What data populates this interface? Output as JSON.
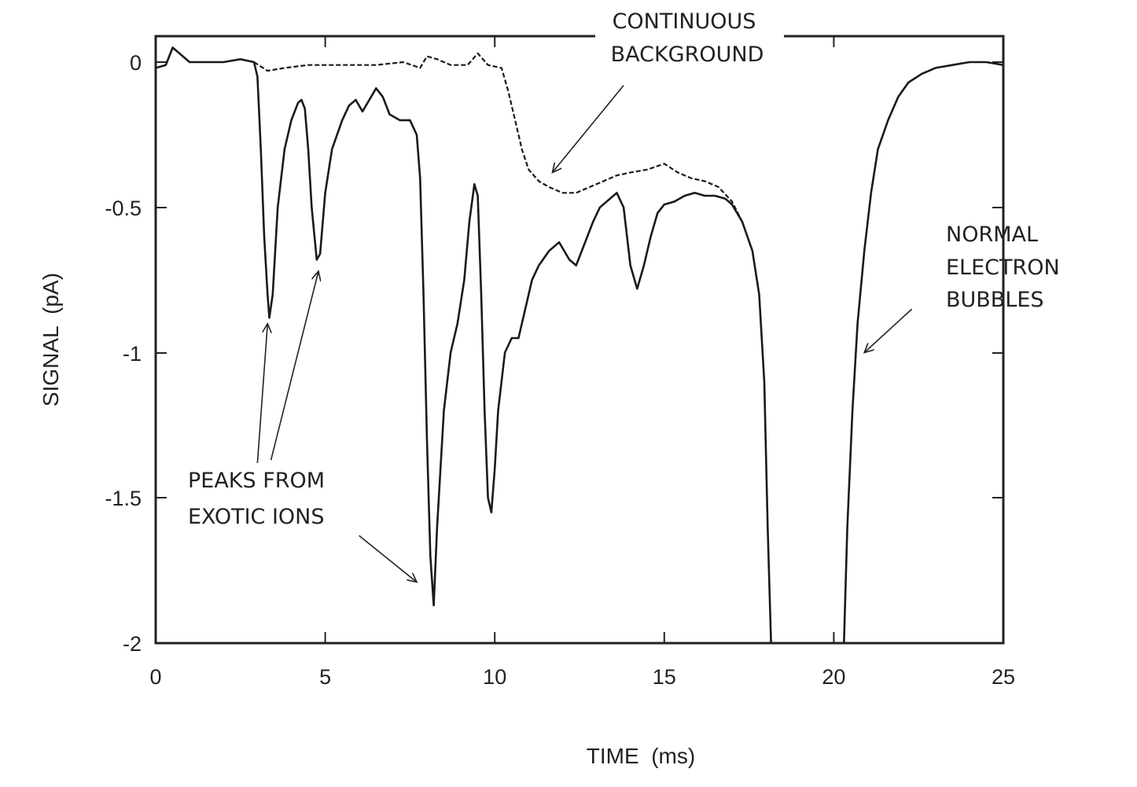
{
  "chart_data": {
    "type": "line",
    "title": "",
    "xlabel": "TIME  (ms)",
    "ylabel": "SIGNAL  (pA)",
    "xlim": [
      0,
      25
    ],
    "ylim": [
      -2,
      0.1
    ],
    "x_ticks": [
      0,
      5,
      10,
      15,
      20,
      25
    ],
    "x_tick_labels": [
      "0",
      "5",
      "10",
      "15",
      "20",
      "25"
    ],
    "y_ticks": [
      0,
      -0.5,
      -1,
      -1.5,
      -2
    ],
    "y_tick_labels": [
      "0",
      "-0.5",
      "-1",
      "-1.5",
      "-2"
    ],
    "grid": false,
    "legend": "none",
    "series": [
      {
        "style": "solid",
        "points": [
          [
            0,
            -0.02
          ],
          [
            0.3,
            -0.01
          ],
          [
            0.5,
            0.05
          ],
          [
            0.7,
            0.03
          ],
          [
            1.0,
            0.0
          ],
          [
            1.5,
            0.0
          ],
          [
            2.0,
            0.0
          ],
          [
            2.5,
            0.01
          ],
          [
            2.9,
            0.0
          ],
          [
            3.0,
            -0.05
          ],
          [
            3.1,
            -0.3
          ],
          [
            3.2,
            -0.6
          ],
          [
            3.3,
            -0.8
          ],
          [
            3.35,
            -0.88
          ],
          [
            3.45,
            -0.8
          ],
          [
            3.6,
            -0.5
          ],
          [
            3.8,
            -0.3
          ],
          [
            4.0,
            -0.2
          ],
          [
            4.2,
            -0.14
          ],
          [
            4.3,
            -0.13
          ],
          [
            4.4,
            -0.16
          ],
          [
            4.5,
            -0.3
          ],
          [
            4.6,
            -0.5
          ],
          [
            4.75,
            -0.68
          ],
          [
            4.85,
            -0.66
          ],
          [
            5.0,
            -0.45
          ],
          [
            5.2,
            -0.3
          ],
          [
            5.5,
            -0.2
          ],
          [
            5.7,
            -0.15
          ],
          [
            5.9,
            -0.13
          ],
          [
            6.1,
            -0.17
          ],
          [
            6.3,
            -0.13
          ],
          [
            6.5,
            -0.09
          ],
          [
            6.7,
            -0.12
          ],
          [
            6.9,
            -0.18
          ],
          [
            7.2,
            -0.2
          ],
          [
            7.5,
            -0.2
          ],
          [
            7.7,
            -0.25
          ],
          [
            7.8,
            -0.4
          ],
          [
            7.9,
            -0.8
          ],
          [
            8.0,
            -1.3
          ],
          [
            8.1,
            -1.7
          ],
          [
            8.2,
            -1.87
          ],
          [
            8.3,
            -1.6
          ],
          [
            8.5,
            -1.2
          ],
          [
            8.7,
            -1.0
          ],
          [
            8.9,
            -0.9
          ],
          [
            9.1,
            -0.75
          ],
          [
            9.25,
            -0.55
          ],
          [
            9.4,
            -0.42
          ],
          [
            9.5,
            -0.46
          ],
          [
            9.6,
            -0.8
          ],
          [
            9.7,
            -1.2
          ],
          [
            9.8,
            -1.5
          ],
          [
            9.9,
            -1.55
          ],
          [
            10.0,
            -1.4
          ],
          [
            10.1,
            -1.2
          ],
          [
            10.3,
            -1.0
          ],
          [
            10.5,
            -0.95
          ],
          [
            10.7,
            -0.95
          ],
          [
            10.9,
            -0.85
          ],
          [
            11.1,
            -0.75
          ],
          [
            11.3,
            -0.7
          ],
          [
            11.6,
            -0.65
          ],
          [
            11.9,
            -0.62
          ],
          [
            12.2,
            -0.68
          ],
          [
            12.4,
            -0.7
          ],
          [
            12.6,
            -0.64
          ],
          [
            12.9,
            -0.55
          ],
          [
            13.1,
            -0.5
          ],
          [
            13.4,
            -0.47
          ],
          [
            13.6,
            -0.45
          ],
          [
            13.8,
            -0.5
          ],
          [
            14.0,
            -0.7
          ],
          [
            14.2,
            -0.78
          ],
          [
            14.4,
            -0.7
          ],
          [
            14.6,
            -0.6
          ],
          [
            14.8,
            -0.52
          ],
          [
            15.0,
            -0.49
          ],
          [
            15.3,
            -0.48
          ],
          [
            15.6,
            -0.46
          ],
          [
            15.9,
            -0.45
          ],
          [
            16.2,
            -0.46
          ],
          [
            16.5,
            -0.46
          ],
          [
            16.8,
            -0.47
          ],
          [
            17.0,
            -0.49
          ],
          [
            17.3,
            -0.55
          ],
          [
            17.6,
            -0.65
          ],
          [
            17.8,
            -0.8
          ],
          [
            17.95,
            -1.1
          ],
          [
            18.05,
            -1.6
          ],
          [
            18.15,
            -2.0
          ]
        ]
      },
      {
        "style": "solid",
        "points": [
          [
            20.3,
            -2.0
          ],
          [
            20.4,
            -1.6
          ],
          [
            20.55,
            -1.2
          ],
          [
            20.7,
            -0.9
          ],
          [
            20.9,
            -0.65
          ],
          [
            21.1,
            -0.45
          ],
          [
            21.3,
            -0.3
          ],
          [
            21.6,
            -0.2
          ],
          [
            21.9,
            -0.12
          ],
          [
            22.2,
            -0.07
          ],
          [
            22.6,
            -0.04
          ],
          [
            23.0,
            -0.02
          ],
          [
            23.5,
            -0.01
          ],
          [
            24.0,
            0.0
          ],
          [
            24.5,
            0.0
          ],
          [
            25.0,
            -0.01
          ]
        ]
      },
      {
        "style": "dashed",
        "points": [
          [
            2.9,
            0.0
          ],
          [
            3.3,
            -0.03
          ],
          [
            3.8,
            -0.02
          ],
          [
            4.5,
            -0.01
          ],
          [
            5.5,
            -0.01
          ],
          [
            6.5,
            -0.01
          ],
          [
            7.3,
            0.0
          ],
          [
            7.8,
            -0.02
          ],
          [
            8.0,
            0.02
          ],
          [
            8.3,
            0.01
          ],
          [
            8.7,
            -0.01
          ],
          [
            9.2,
            -0.01
          ],
          [
            9.5,
            0.03
          ],
          [
            9.8,
            -0.01
          ],
          [
            10.2,
            -0.02
          ],
          [
            10.4,
            -0.1
          ],
          [
            10.6,
            -0.2
          ],
          [
            10.8,
            -0.3
          ],
          [
            11.0,
            -0.37
          ],
          [
            11.3,
            -0.41
          ],
          [
            11.6,
            -0.43
          ],
          [
            12.0,
            -0.45
          ],
          [
            12.4,
            -0.45
          ],
          [
            12.8,
            -0.43
          ],
          [
            13.2,
            -0.41
          ],
          [
            13.6,
            -0.39
          ],
          [
            14.0,
            -0.38
          ],
          [
            14.5,
            -0.37
          ],
          [
            15.0,
            -0.35
          ],
          [
            15.4,
            -0.38
          ],
          [
            15.8,
            -0.4
          ],
          [
            16.2,
            -0.41
          ],
          [
            16.6,
            -0.43
          ],
          [
            17.0,
            -0.48
          ],
          [
            17.3,
            -0.55
          ]
        ]
      }
    ],
    "annotations": [
      {
        "lines": [
          "CONTINUOUS",
          "BACKGROUND"
        ],
        "arrows": [
          {
            "from": [
              13.8,
              -0.08
            ],
            "to": [
              11.7,
              -0.38
            ]
          }
        ]
      },
      {
        "lines": [
          "PEAKS FROM",
          "EXOTIC IONS"
        ],
        "arrows": [
          {
            "from": [
              3.0,
              -1.38
            ],
            "to": [
              3.3,
              -0.9
            ]
          },
          {
            "from": [
              3.4,
              -1.37
            ],
            "to": [
              4.8,
              -0.72
            ]
          },
          {
            "from": [
              6.0,
              -1.63
            ],
            "to": [
              7.7,
              -1.79
            ]
          }
        ]
      },
      {
        "lines": [
          "NORMAL",
          "ELECTRON",
          "BUBBLES"
        ],
        "arrows": [
          {
            "from": [
              22.3,
              -0.85
            ],
            "to": [
              20.9,
              -1.0
            ]
          }
        ]
      }
    ]
  }
}
